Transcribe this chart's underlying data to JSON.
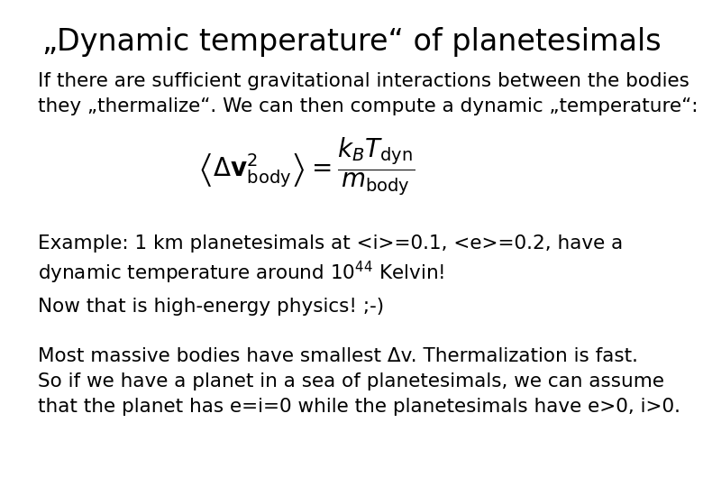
{
  "title": "„Dynamic temperature“ of planetesimals",
  "title_fontsize": 24,
  "background_color": "#ffffff",
  "text_color": "#000000",
  "body_fontsize": 15.5,
  "formula": "$\\left\\langle \\Delta \\mathbf{v}^{2}_{\\mathrm{body}} \\right\\rangle = \\dfrac{k_B T_{\\mathrm{dyn}}}{m_{\\mathrm{body}}}$",
  "formula_fontsize": 20,
  "paragraph1_line1": "If there are sufficient gravitational interactions between the bodies",
  "paragraph1_line2": "they „thermalize“. We can then compute a dynamic „temperature“:",
  "paragraph2_line1": "Example: 1 km planetesimals at <i>=0.1, <e>=0.2, have a",
  "paragraph2_line2": "dynamic temperature around 10$^{44}$ Kelvin!",
  "paragraph3": "Now that is high-energy physics! ;-)",
  "paragraph4_line1": "Most massive bodies have smallest Δv. Thermalization is fast.",
  "paragraph4_line2": "So if we have a planet in a sea of planetesimals, we can assume",
  "paragraph4_line3": "that the planet has e=i=0 while the planetesimals have e>0, i>0."
}
